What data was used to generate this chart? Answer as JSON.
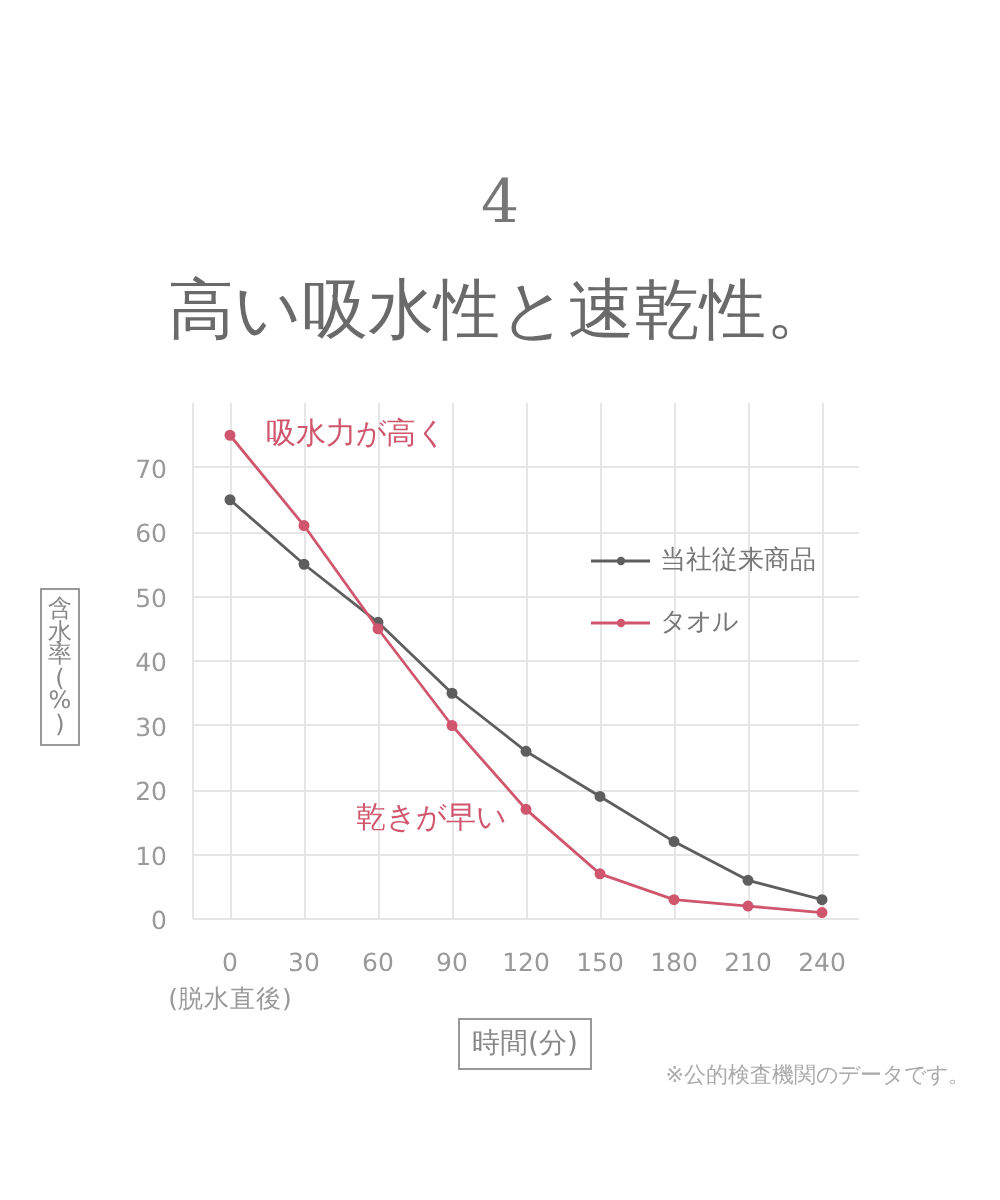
{
  "chart_data": {
    "type": "line",
    "subtitle": "4",
    "title": "高い吸水性と速乾性。",
    "xlabel": "時間(分)",
    "ylabel": "含水率(%)",
    "x": [
      0,
      30,
      60,
      90,
      120,
      150,
      180,
      210,
      240
    ],
    "series": [
      {
        "name": "当社従来商品",
        "color": "#5e5e5e",
        "values": [
          65,
          55,
          46,
          35,
          26,
          19,
          12,
          6,
          3
        ]
      },
      {
        "name": "タオル",
        "color": "#d0566e",
        "values": [
          75,
          61,
          45,
          30,
          17,
          7,
          3,
          2,
          1
        ]
      }
    ],
    "xlim": [
      -15,
      255
    ],
    "ylim": [
      0,
      80
    ],
    "xticks": [
      {
        "value": 0,
        "label": "0\n(脱水直後)"
      },
      30,
      60,
      90,
      120,
      150,
      180,
      210,
      240
    ],
    "yticks": [
      0,
      10,
      20,
      30,
      40,
      50,
      60,
      70
    ],
    "grid": true,
    "legend": "right",
    "marker": "circle",
    "line_style": "solid",
    "annotations": [
      {
        "text": "吸水力が高く",
        "x": 0,
        "y": 75
      },
      {
        "text": "乾きが早い",
        "x": 120,
        "y": 17
      },
      "※公的検査機関のデータです。"
    ]
  }
}
